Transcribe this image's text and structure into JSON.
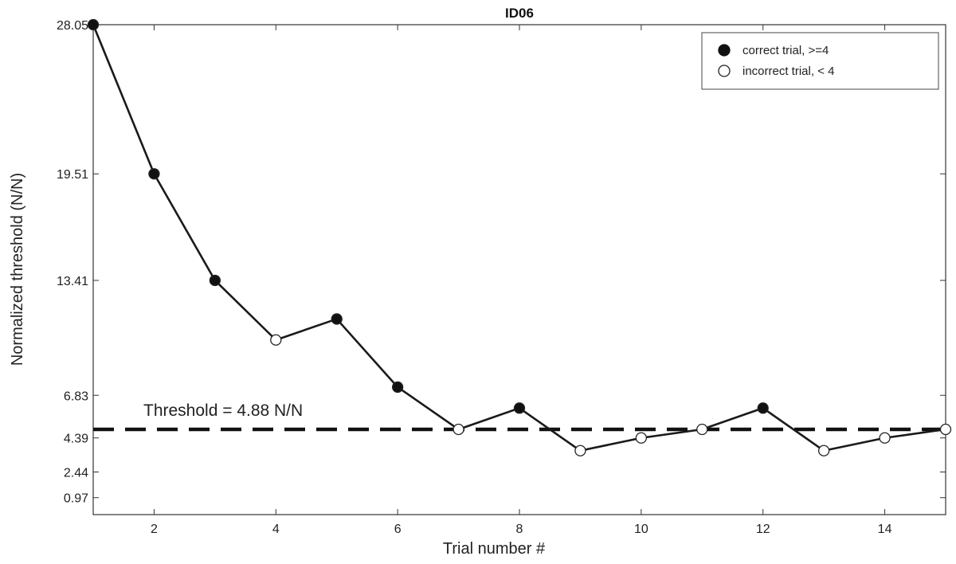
{
  "chart_data": {
    "type": "line",
    "title": "ID06",
    "xlabel": "Trial number #",
    "ylabel": "Normalized threshold (N/N)",
    "xlim": [
      1,
      15
    ],
    "ylim": [
      0,
      28.05
    ],
    "x_ticks": [
      2,
      4,
      6,
      8,
      10,
      12,
      14
    ],
    "y_ticks": [
      0.97,
      2.44,
      4.39,
      6.83,
      13.41,
      19.51,
      28.05
    ],
    "grid": false,
    "legend_position": "top-right",
    "series": [
      {
        "x": [
          1,
          2,
          3,
          4,
          5,
          6,
          7,
          8,
          9,
          10,
          11,
          12,
          13,
          14,
          15
        ],
        "values": [
          28.05,
          19.51,
          13.41,
          10.0,
          11.2,
          7.3,
          4.88,
          6.1,
          3.66,
          4.39,
          4.88,
          6.1,
          3.66,
          4.39,
          4.88
        ],
        "correct": [
          true,
          true,
          true,
          false,
          true,
          true,
          false,
          true,
          false,
          false,
          false,
          true,
          false,
          false,
          false
        ]
      }
    ],
    "legend": [
      {
        "label": "correct trial, >=4",
        "marker": "filled-circle"
      },
      {
        "label": "incorrect trial, < 4",
        "marker": "open-circle"
      }
    ],
    "threshold": {
      "value": 4.88,
      "label": "Threshold = 4.88 N/N",
      "style": "dashed"
    },
    "colors": {
      "line": "#1a1a1a",
      "marker_fill": "#111111",
      "marker_open_fill": "#ffffff",
      "axis": "#333333"
    }
  }
}
